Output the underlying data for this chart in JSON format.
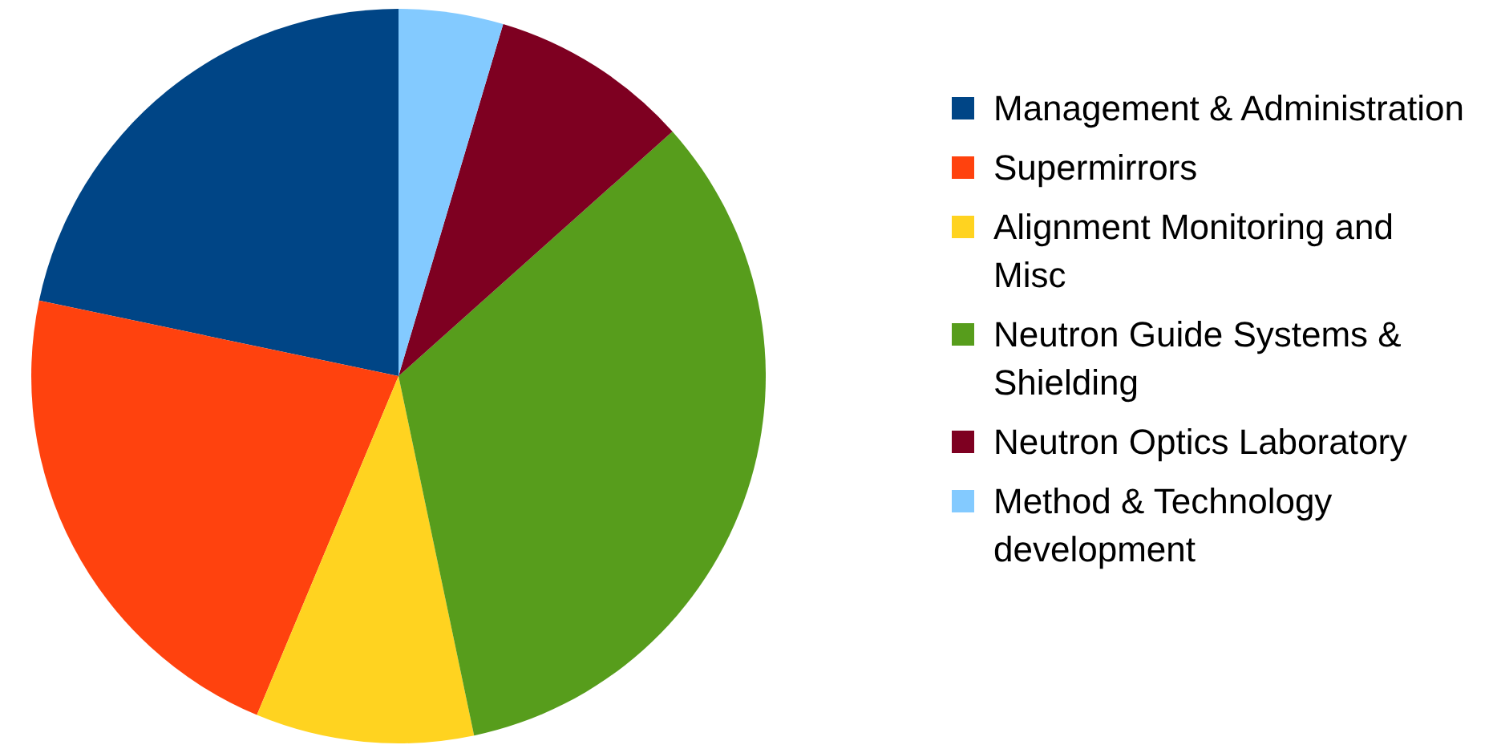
{
  "chart_data": {
    "type": "pie",
    "categories": [
      "Management & Administration",
      "Supermirrors",
      "Alignment Monitoring and Misc",
      "Neutron Guide Systems & Shielding",
      "Neutron Optics Laboratory",
      "Method & Technology development"
    ],
    "values": [
      21.7,
      22,
      9.6,
      33.3,
      8.8,
      4.6
    ],
    "colors": [
      "#004586",
      "#ff420e",
      "#ffd320",
      "#579d1c",
      "#7e0021",
      "#83caff"
    ],
    "legend": "right"
  }
}
